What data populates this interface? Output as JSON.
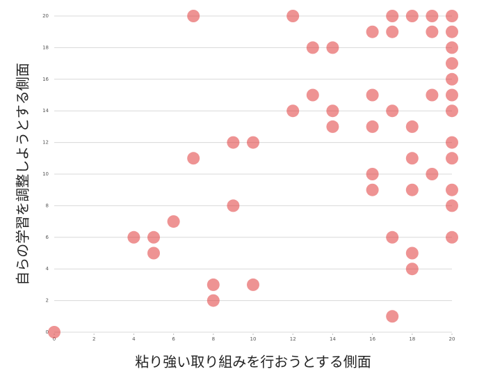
{
  "chart_data": {
    "type": "scatter",
    "x_label": "粘り強い取り組みを行おうとする側面",
    "y_label": "自らの学習を調整しようとする側面",
    "color": "#e03a3a",
    "xlim": [
      0,
      20
    ],
    "ylim": [
      0,
      20
    ],
    "xticks": [
      0,
      2,
      4,
      6,
      8,
      10,
      12,
      14,
      16,
      18,
      20
    ],
    "yticks": [
      0,
      2,
      4,
      6,
      8,
      10,
      12,
      14,
      16,
      18,
      20
    ],
    "grid": true,
    "x": [
      7,
      12,
      17,
      18,
      19,
      20,
      16,
      17,
      19,
      20,
      13,
      14,
      20,
      20,
      20,
      13,
      16,
      19,
      20,
      12,
      14,
      17,
      20,
      14,
      16,
      18,
      9,
      10,
      20,
      7,
      18,
      20,
      16,
      19,
      16,
      18,
      20,
      9,
      20,
      6,
      4,
      5,
      17,
      20,
      5,
      18,
      18,
      8,
      10,
      8,
      17,
      0
    ],
    "y": [
      20,
      20,
      20,
      20,
      20,
      20,
      19,
      19,
      19,
      19,
      18,
      18,
      18,
      17,
      16,
      15,
      15,
      15,
      15,
      14,
      14,
      14,
      14,
      13,
      13,
      13,
      12,
      12,
      12,
      11,
      11,
      11,
      10,
      10,
      9,
      9,
      9,
      8,
      8,
      7,
      6,
      6,
      6,
      6,
      5,
      5,
      4,
      3,
      3,
      2,
      1,
      0
    ]
  }
}
